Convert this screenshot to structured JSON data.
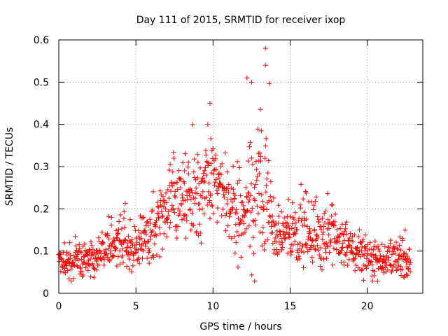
{
  "chart_data": {
    "type": "scatter",
    "title": "Day 111 of 2015, SRMTID for receiver ixop",
    "xlabel": "GPS time / hours",
    "ylabel": "SRMTID / TECUs",
    "xlim": [
      0,
      23.6
    ],
    "ylim": [
      0,
      0.6
    ],
    "xticks": [
      0,
      5,
      10,
      15,
      20
    ],
    "yticks": [
      0,
      0.1,
      0.2,
      0.3,
      0.4,
      0.5,
      0.6
    ],
    "xtick_labels": [
      "0",
      "5",
      "10",
      "15",
      "20"
    ],
    "ytick_labels": [
      "0",
      "0.1",
      "0.2",
      "0.3",
      "0.4",
      "0.5",
      "0.6"
    ],
    "grid": true,
    "marker": "+",
    "marker_color": "#ff0000",
    "series": [
      {
        "name": "SRMTID",
        "x_range": [
          0,
          22.8
        ],
        "sample_interval_hours": 0.02,
        "trend": {
          "hours": [
            0,
            1,
            2,
            3,
            4,
            5,
            6,
            7,
            8,
            9,
            10,
            11,
            12,
            12.5,
            13,
            13.5,
            14,
            15,
            16,
            17,
            18,
            19,
            20,
            21,
            22,
            22.8
          ],
          "mean": [
            0.07,
            0.08,
            0.08,
            0.1,
            0.12,
            0.11,
            0.14,
            0.2,
            0.23,
            0.24,
            0.26,
            0.22,
            0.18,
            0.22,
            0.24,
            0.22,
            0.14,
            0.14,
            0.15,
            0.14,
            0.13,
            0.1,
            0.09,
            0.08,
            0.08,
            0.08
          ],
          "spread": [
            0.02,
            0.025,
            0.025,
            0.03,
            0.035,
            0.03,
            0.05,
            0.06,
            0.06,
            0.07,
            0.07,
            0.06,
            0.06,
            0.1,
            0.12,
            0.1,
            0.04,
            0.04,
            0.05,
            0.045,
            0.04,
            0.03,
            0.03,
            0.025,
            0.025,
            0.025
          ]
        },
        "notable_peaks": [
          {
            "x": 9.8,
            "y": 0.45
          },
          {
            "x": 12.2,
            "y": 0.51
          },
          {
            "x": 12.5,
            "y": 0.5
          },
          {
            "x": 13.4,
            "y": 0.58
          },
          {
            "x": 13.4,
            "y": 0.54
          }
        ]
      }
    ]
  }
}
